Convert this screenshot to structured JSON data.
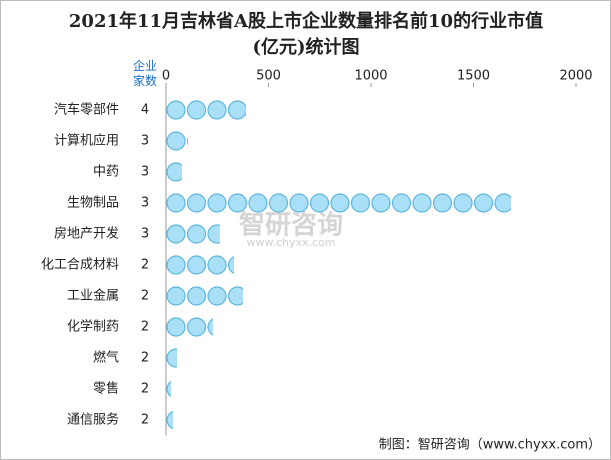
{
  "chart_data": {
    "type": "bar",
    "title": "2021年11月吉林省A股上市企业数量排名前10的行业市值(亿元)统计图",
    "count_header": "企业家数",
    "categories": [
      "汽车零部件",
      "计算机应用",
      "中药",
      "生物制品",
      "房地产开发",
      "化工合成材料",
      "工业金属",
      "化学制药",
      "燃气",
      "零售",
      "通信服务"
    ],
    "counts": [
      4,
      3,
      3,
      3,
      3,
      2,
      2,
      2,
      2,
      2,
      2
    ],
    "values": [
      390,
      107,
      78,
      1683,
      263,
      332,
      376,
      229,
      54,
      24,
      34
    ],
    "color": "#a9e0f7",
    "xlim": [
      0,
      2000
    ],
    "xticks": [
      0,
      500,
      1000,
      1500,
      2000
    ],
    "watermark": "智研咨询",
    "watermark_url": "www.chyxx.com",
    "source": "制图：智研咨询（www.chyxx.com）"
  }
}
